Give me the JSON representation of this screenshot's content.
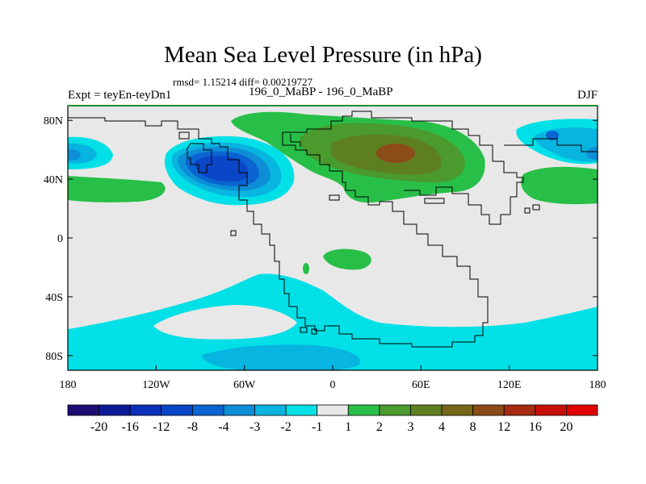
{
  "title": "Mean Sea Level Pressure (in hPa)",
  "stats": "rmsd= 1.15214 diff= 0.00219727",
  "experiment": "Expt = teyEn-teyDn1",
  "runs": "196_0_MaBP - 196_0_MaBP",
  "season": "DJF",
  "lat_ticks": [
    "80N",
    "40N",
    "0",
    "40S",
    "80S"
  ],
  "lat_values": [
    80,
    40,
    0,
    -40,
    -80
  ],
  "lon_ticks": [
    "180",
    "120W",
    "60W",
    "0",
    "60E",
    "120E",
    "180"
  ],
  "lon_values": [
    -180,
    -120,
    -60,
    0,
    60,
    120,
    180
  ],
  "colorbar": {
    "labels": [
      "-20",
      "-16",
      "-12",
      "-8",
      "-4",
      "-3",
      "-2",
      "-1",
      "1",
      "2",
      "3",
      "4",
      "8",
      "12",
      "16",
      "20"
    ],
    "colors": [
      "#1b0d73",
      "#0d1a96",
      "#0a2fb8",
      "#0a47c8",
      "#0a64d2",
      "#0d8ed6",
      "#08b4e0",
      "#00e0e6",
      "#e8e8e8",
      "#28bf48",
      "#4a9a2e",
      "#5e7f20",
      "#76661a",
      "#8c4c18",
      "#a62b12",
      "#c80f0a",
      "#e00000"
    ]
  },
  "map_colors": {
    "neutral": "#e8e8e8",
    "cyan": "#00e0e6",
    "lightblue": "#08b4e0",
    "medblue": "#0d8ed6",
    "blue": "#0a64d2",
    "darkblue": "#0a47c8",
    "green": "#28bf48",
    "darkgreen": "#4a9a2e",
    "olive": "#5e7f20",
    "brown": "#8c4c18"
  }
}
